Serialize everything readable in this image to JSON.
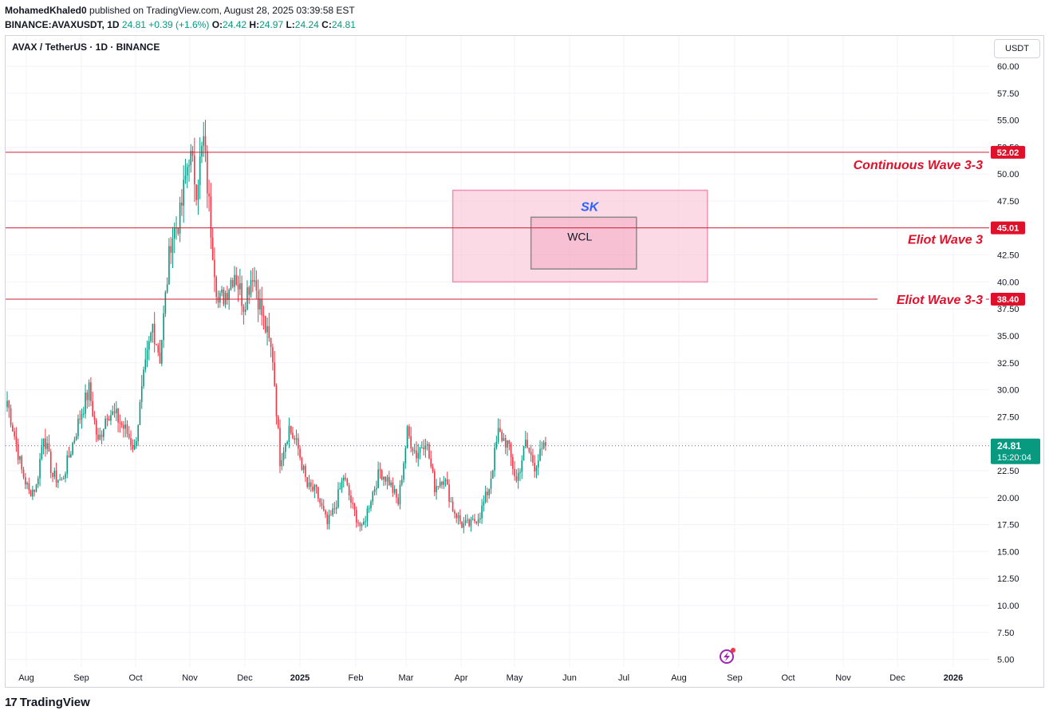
{
  "header": {
    "author": "MohamedKhaled0",
    "published_text": "published on TradingView.com, August 28, 2025 03:39:58 EST",
    "symbol": "BINANCE:AVAXUSDT, 1D",
    "last": "24.81",
    "change": "+0.39 (+1.6%)",
    "open_label": "O:",
    "open": "24.42",
    "high_label": "H:",
    "high": "24.97",
    "low_label": "L:",
    "low": "24.24",
    "close_label": "C:",
    "close": "24.81"
  },
  "chart_title": "AVAX / TetherUS · 1D · BINANCE",
  "currency_label": "USDT",
  "footer": {
    "logo_glyph": "17",
    "logo_text": "TradingView"
  },
  "colors": {
    "up": "#089981",
    "down": "#f23645",
    "hline": "#cc2233",
    "zone_fill": "#f8bbd0",
    "zone_stroke": "#f48fb1",
    "box_stroke": "#8a8a8a",
    "sk_text": "#2962ff",
    "price_tag": "#089981"
  },
  "chart_data": {
    "type": "candlestick",
    "title": "AVAX / TetherUS · 1D · BINANCE",
    "ylim": [
      5.0,
      60.0
    ],
    "y_ticks": [
      "60.00",
      "57.50",
      "55.00",
      "52.50",
      "50.00",
      "47.50",
      "45.00",
      "42.50",
      "40.00",
      "37.50",
      "35.00",
      "32.50",
      "30.00",
      "27.50",
      "25.00",
      "22.50",
      "20.00",
      "17.50",
      "15.00",
      "12.50",
      "10.00",
      "7.50",
      "5.00"
    ],
    "x_ticks": [
      "Aug",
      "Sep",
      "Oct",
      "Nov",
      "Dec",
      "2025",
      "Feb",
      "Mar",
      "Apr",
      "May",
      "Jun",
      "Jul",
      "Aug",
      "Sep",
      "Oct",
      "Nov",
      "Dec",
      "2026"
    ],
    "x_tick_bold": [
      false,
      false,
      false,
      false,
      false,
      true,
      false,
      false,
      false,
      false,
      false,
      false,
      false,
      false,
      false,
      false,
      false,
      true
    ],
    "last_price": "24.81",
    "countdown": "15:20:04",
    "anchor_closes": [
      [
        0,
        29.0
      ],
      [
        8,
        22.5
      ],
      [
        12,
        20.5
      ],
      [
        16,
        21.0
      ],
      [
        20,
        26.0
      ],
      [
        25,
        22.0
      ],
      [
        30,
        21.5
      ],
      [
        36,
        25.0
      ],
      [
        40,
        27.5
      ],
      [
        45,
        30.0
      ],
      [
        50,
        25.0
      ],
      [
        55,
        28.0
      ],
      [
        60,
        27.5
      ],
      [
        66,
        26.0
      ],
      [
        70,
        24.5
      ],
      [
        75,
        31.0
      ],
      [
        80,
        36.0
      ],
      [
        84,
        33.0
      ],
      [
        90,
        44.0
      ],
      [
        95,
        46.0
      ],
      [
        100,
        52.0
      ],
      [
        104,
        49.0
      ],
      [
        108,
        53.0
      ],
      [
        112,
        45.0
      ],
      [
        116,
        38.0
      ],
      [
        120,
        39.0
      ],
      [
        125,
        41.0
      ],
      [
        130,
        38.0
      ],
      [
        135,
        41.0
      ],
      [
        140,
        37.0
      ],
      [
        146,
        33.0
      ],
      [
        150,
        23.5
      ],
      [
        155,
        26.5
      ],
      [
        160,
        24.5
      ],
      [
        165,
        21.0
      ],
      [
        170,
        20.5
      ],
      [
        176,
        17.5
      ],
      [
        180,
        19.0
      ],
      [
        185,
        22.0
      ],
      [
        190,
        19.0
      ],
      [
        195,
        17.0
      ],
      [
        200,
        20.0
      ],
      [
        205,
        22.5
      ],
      [
        210,
        21.5
      ],
      [
        215,
        19.5
      ],
      [
        220,
        26.0
      ],
      [
        225,
        24.0
      ],
      [
        230,
        25.5
      ],
      [
        235,
        21.0
      ],
      [
        240,
        22.0
      ],
      [
        245,
        19.0
      ],
      [
        250,
        17.5
      ],
      [
        255,
        17.5
      ],
      [
        260,
        18.5
      ],
      [
        265,
        21.0
      ],
      [
        270,
        26.0
      ],
      [
        275,
        25.0
      ],
      [
        280,
        21.5
      ],
      [
        285,
        25.0
      ],
      [
        290,
        23.0
      ],
      [
        296,
        24.81
      ]
    ],
    "horizontal_lines": [
      {
        "price": 52.02,
        "label": "52.02",
        "annotation": "Continuous Wave 3-3"
      },
      {
        "price": 45.01,
        "label": "45.01",
        "annotation": "Eliot Wave 3"
      },
      {
        "price": 38.4,
        "label": "38.40",
        "annotation": "Eliot Wave 3-3"
      }
    ],
    "zones": [
      {
        "name": "SK",
        "price_top": 48.5,
        "price_bottom": 40.0,
        "day_start": 245,
        "day_end": 385
      },
      {
        "name": "WCL",
        "price_top": 46.0,
        "price_bottom": 41.2,
        "day_start": 288,
        "day_end": 346
      }
    ]
  }
}
